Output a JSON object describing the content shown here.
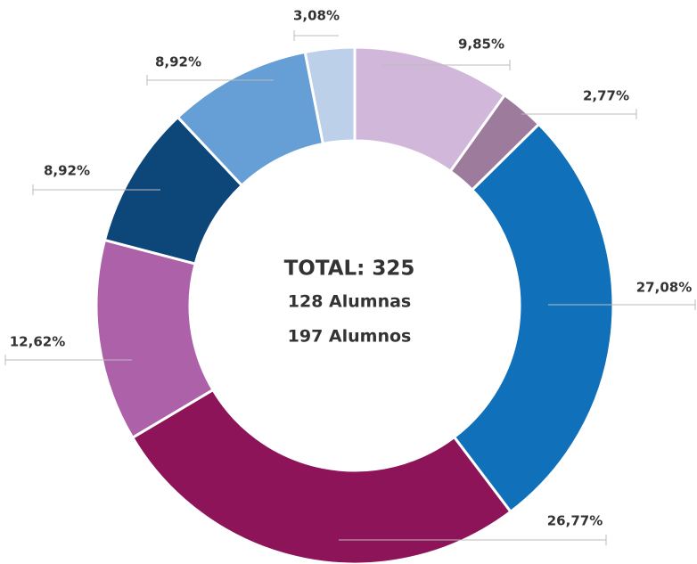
{
  "chart_data": {
    "type": "donut",
    "values": [
      9.85,
      2.77,
      27.08,
      26.77,
      12.62,
      8.92,
      8.92,
      3.08
    ],
    "value_labels": [
      "9,85%",
      "2,77%",
      "27,08%",
      "26,77%",
      "12,62%",
      "8,92%",
      "8,92%",
      "3,08%"
    ],
    "colors": [
      "#d1b8da",
      "#9c7b9c",
      "#1070b9",
      "#8e145a",
      "#ad61a9",
      "#0d4678",
      "#659fd6",
      "#bdd0e9"
    ],
    "center_text": [
      "TOTAL: 325",
      "128 Alumnas",
      "197 Alumnos"
    ]
  }
}
